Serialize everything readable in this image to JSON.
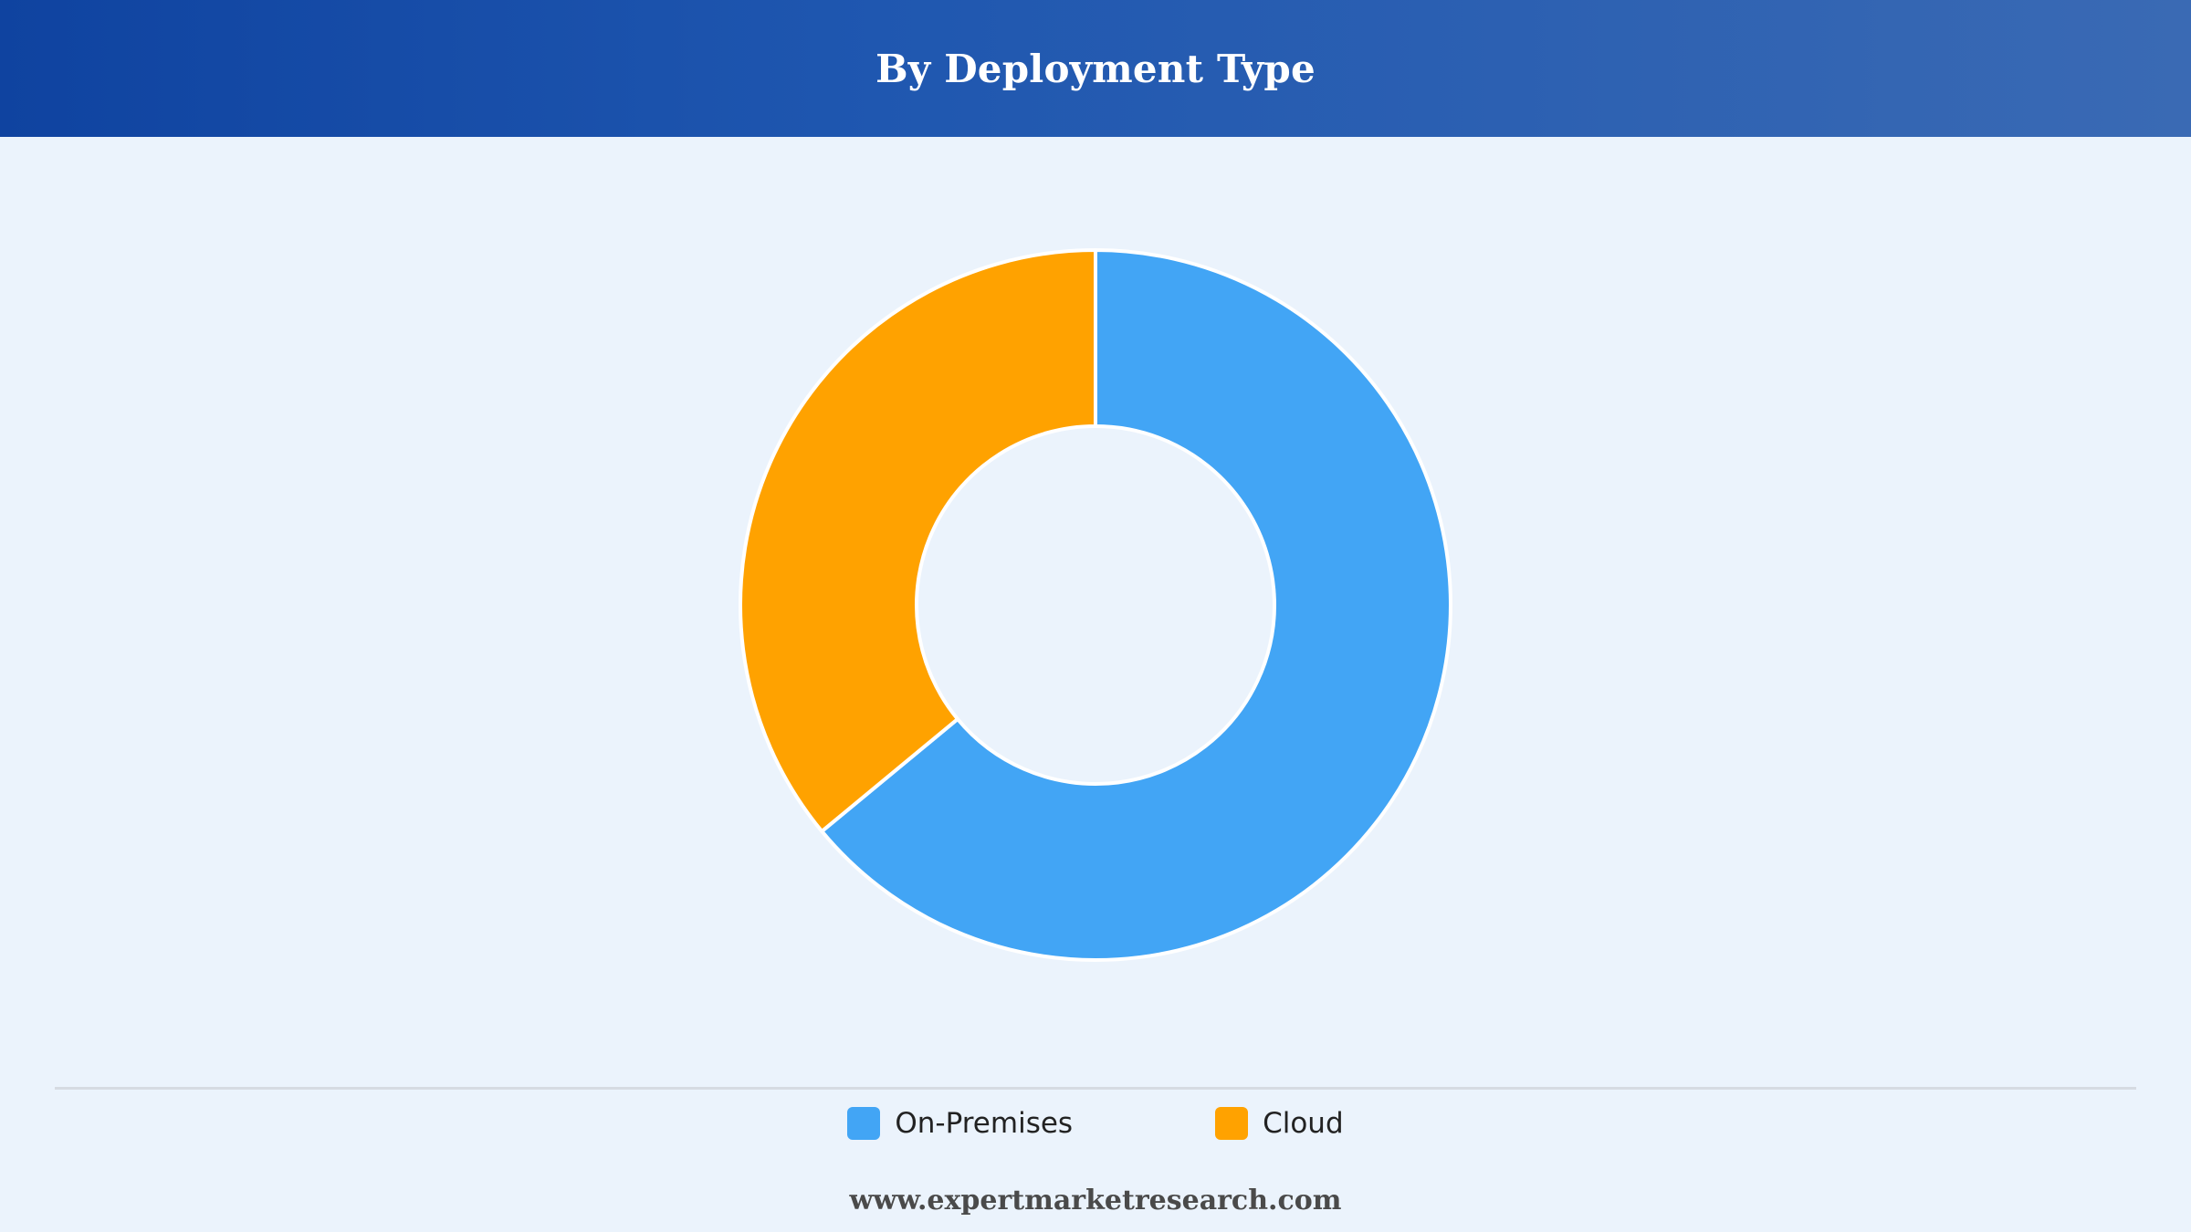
{
  "header": {
    "title": "By Deployment Type"
  },
  "chart_data": {
    "type": "pie",
    "subtype": "donut",
    "title": "By Deployment Type",
    "categories": [
      "On-Premises",
      "Cloud"
    ],
    "values": [
      64,
      36
    ],
    "colors": [
      "#42a5f5",
      "#ffa200"
    ],
    "legend_position": "bottom"
  },
  "legend": {
    "items": [
      {
        "label": "On-Premises",
        "color": "#42a5f5"
      },
      {
        "label": "Cloud",
        "color": "#ffa200"
      }
    ]
  },
  "footer": {
    "source": "www.expertmarketresearch.com"
  }
}
